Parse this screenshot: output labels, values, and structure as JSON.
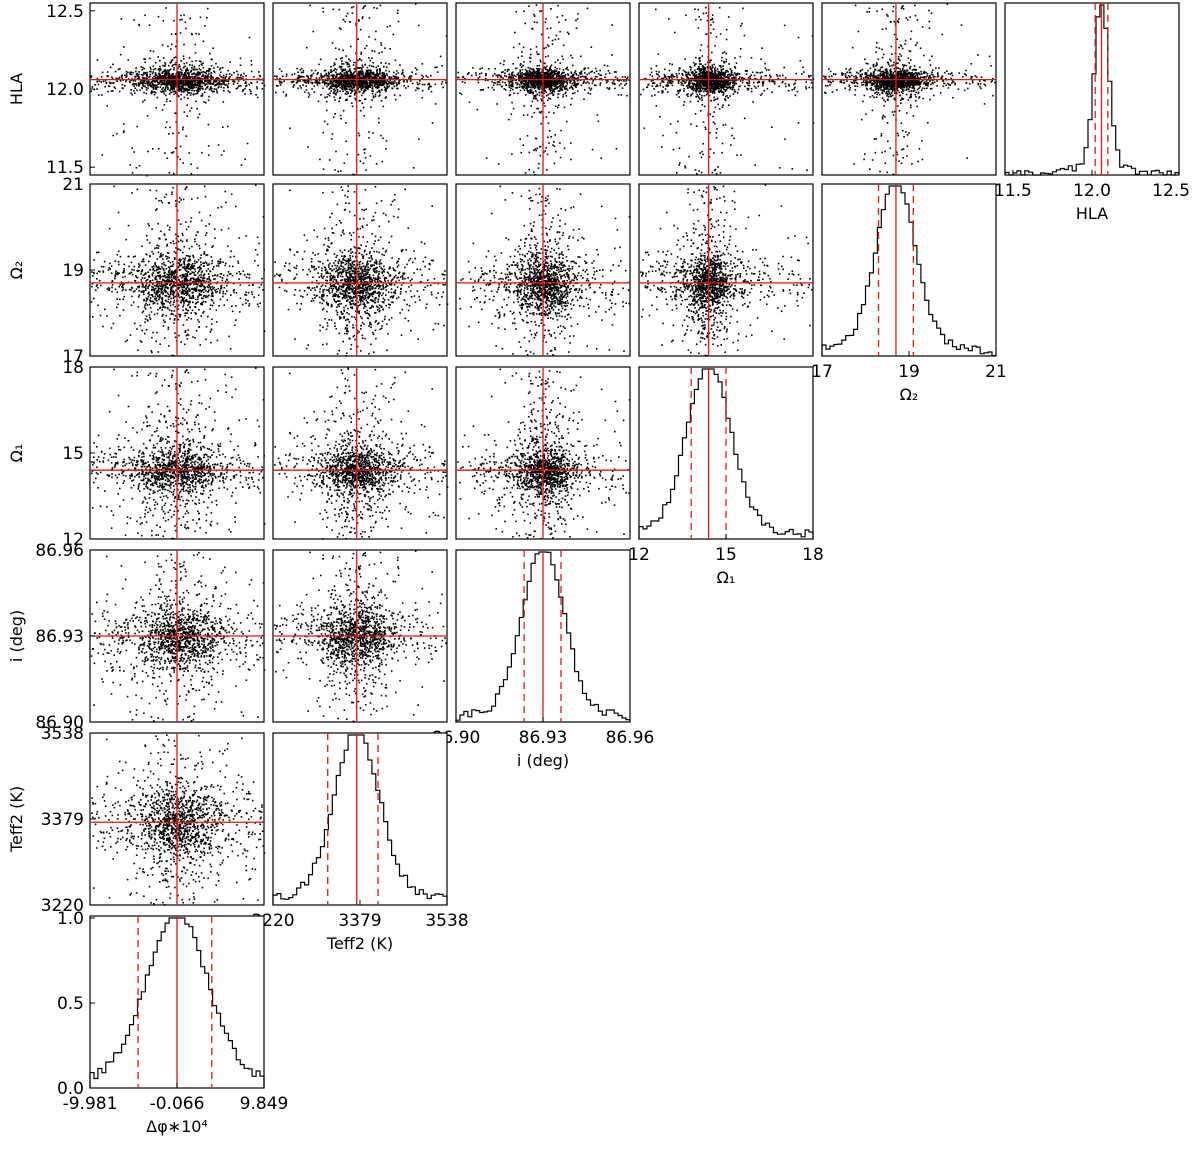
{
  "chart_data": {
    "type": "scatter",
    "layout": "corner-plot",
    "parameters": [
      {
        "key": "dphi",
        "label": "Δφ∗10⁴",
        "min": -9.981,
        "max": 9.849,
        "ticks": [
          "-9.981",
          "-0.066",
          "9.849"
        ],
        "tick_values": [
          -9.981,
          -0.066,
          9.849
        ],
        "best": -0.066,
        "sigma_lo": -4.5,
        "sigma_hi": 3.9,
        "spread": 4.6,
        "scatter_spread": 2.2
      },
      {
        "key": "teff2",
        "label": "Teff2 (K)",
        "min": 3220,
        "max": 3538,
        "ticks": [
          "3220",
          "3379",
          "3538"
        ],
        "tick_values": [
          3220,
          3379,
          3538
        ],
        "best": 3373,
        "sigma_lo": 3320,
        "sigma_hi": 3412,
        "spread": 55,
        "scatter_spread": 30
      },
      {
        "key": "incl",
        "label": "i (deg)",
        "min": 86.9,
        "max": 86.96,
        "ticks": [
          "86.90",
          "86.93",
          "86.96"
        ],
        "tick_values": [
          86.9,
          86.93,
          86.96
        ],
        "best": 86.93,
        "sigma_lo": 86.9235,
        "sigma_hi": 86.9362,
        "spread": 0.0095,
        "scatter_spread": 0.0045
      },
      {
        "key": "omega1",
        "label": "Ω₁",
        "min": 12,
        "max": 18,
        "ticks": [
          "12",
          "15",
          "18"
        ],
        "tick_values": [
          12,
          15,
          18
        ],
        "best": 14.4,
        "sigma_lo": 13.8,
        "sigma_hi": 15.0,
        "spread": 1.0,
        "scatter_spread": 0.35
      },
      {
        "key": "omega2",
        "label": "Ω₂",
        "min": 17,
        "max": 21,
        "ticks": [
          "17",
          "19",
          "21"
        ],
        "tick_values": [
          17,
          19,
          21
        ],
        "best": 18.7,
        "sigma_lo": 18.3,
        "sigma_hi": 19.1,
        "spread": 0.6,
        "scatter_spread": 0.3
      },
      {
        "key": "hla",
        "label": "HLA",
        "min": 11.45,
        "max": 12.55,
        "ticks": [
          "11.5",
          "12.0",
          "12.5"
        ],
        "tick_values": [
          11.5,
          12.0,
          12.5
        ],
        "best": 12.06,
        "sigma_lo": 12.02,
        "sigma_hi": 12.1,
        "spread": 0.06,
        "scatter_spread": 0.03
      }
    ],
    "histogram_ylim": [
      0.0,
      1.0
    ],
    "histogram_yticks": [
      "0.0",
      "0.5",
      "1.0"
    ],
    "colors": {
      "samples": "#000000",
      "best_fit": "#e8140e",
      "uncertainty": "#e8140e"
    }
  }
}
